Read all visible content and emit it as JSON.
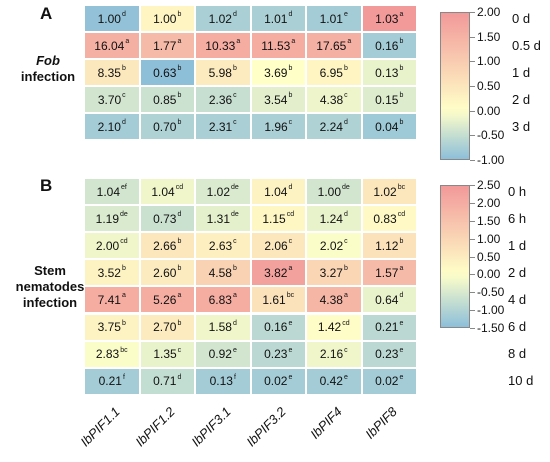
{
  "chart_data": [
    {
      "type": "heatmap",
      "panel_label": "A",
      "title_line1": "Fob",
      "title_line2": "infection",
      "columns": [
        "IbPIF1.1",
        "IbPIF1.2",
        "IbPIF3.1",
        "IbPIF3.2",
        "IbPIF4",
        "IbPIF8"
      ],
      "rows": [
        "0 d",
        "0.5 d",
        "1 d",
        "2 d",
        "3 d"
      ],
      "values": [
        [
          1.0,
          1.0,
          1.02,
          1.01,
          1.01,
          1.03
        ],
        [
          16.04,
          1.77,
          10.33,
          11.53,
          17.65,
          0.16
        ],
        [
          8.35,
          0.63,
          5.98,
          3.69,
          6.95,
          0.13
        ],
        [
          3.7,
          0.85,
          2.36,
          3.54,
          4.38,
          0.15
        ],
        [
          2.1,
          0.7,
          2.31,
          1.96,
          2.24,
          0.04
        ]
      ],
      "display": [
        [
          "1.00",
          "1.00",
          "1.02",
          "1.01",
          "1.01",
          "1.03"
        ],
        [
          "16.04",
          "1.77",
          "10.33",
          "11.53",
          "17.65",
          "0.16"
        ],
        [
          "8.35",
          "0.63",
          "5.98",
          "3.69",
          "6.95",
          "0.13"
        ],
        [
          "3.70",
          "0.85",
          "2.36",
          "3.54",
          "4.38",
          "0.15"
        ],
        [
          "2.10",
          "0.70",
          "2.31",
          "1.96",
          "2.24",
          "0.04"
        ]
      ],
      "letters": [
        [
          "d",
          "b",
          "d",
          "d",
          "e",
          "a"
        ],
        [
          "a",
          "a",
          "a",
          "a",
          "a",
          "b"
        ],
        [
          "b",
          "b",
          "b",
          "b",
          "b",
          "b"
        ],
        [
          "c",
          "b",
          "c",
          "b",
          "c",
          "b"
        ],
        [
          "d",
          "b",
          "c",
          "c",
          "d",
          "b"
        ]
      ],
      "color_matrix": [
        [
          -0.95,
          0.2,
          -0.75,
          -0.75,
          -0.8,
          2.0
        ],
        [
          1.55,
          1.35,
          1.6,
          1.6,
          1.55,
          -0.8
        ],
        [
          0.45,
          -1.0,
          0.4,
          0.0,
          0.2,
          -0.2
        ],
        [
          -0.4,
          -0.45,
          -0.5,
          -0.25,
          -0.15,
          -0.3
        ],
        [
          -0.8,
          -0.7,
          -0.75,
          -0.75,
          -0.7,
          -0.85
        ]
      ],
      "colorbar": {
        "min": -1.0,
        "max": 2.0,
        "ticks": [
          "2.00",
          "1.50",
          "1.00",
          "0.50",
          "0.00",
          "-0.50",
          "-1.00"
        ]
      },
      "colors": {
        "low": "#8dbfd9",
        "mid": "#ffffc8",
        "high": "#f29999"
      }
    },
    {
      "type": "heatmap",
      "panel_label": "B",
      "title_line1": "Stem",
      "title_line2": "nematodes",
      "title_line3": "infection",
      "columns": [
        "IbPIF1.1",
        "IbPIF1.2",
        "IbPIF3.1",
        "IbPIF3.2",
        "IbPIF4",
        "IbPIF8"
      ],
      "rows": [
        "0 h",
        "6 h",
        "1 d",
        "2 d",
        "4 d",
        "6 d",
        "8 d",
        "10 d"
      ],
      "values": [
        [
          1.04,
          1.04,
          1.02,
          1.04,
          1.0,
          1.02
        ],
        [
          1.19,
          0.73,
          1.31,
          1.15,
          1.24,
          0.83
        ],
        [
          2.0,
          2.66,
          2.63,
          2.06,
          2.02,
          1.12
        ],
        [
          3.52,
          2.6,
          4.58,
          3.82,
          3.27,
          1.57
        ],
        [
          7.41,
          5.26,
          6.83,
          1.61,
          4.38,
          0.64
        ],
        [
          3.75,
          2.7,
          1.58,
          0.16,
          1.42,
          0.21
        ],
        [
          2.83,
          1.35,
          0.92,
          0.23,
          2.16,
          0.23
        ],
        [
          0.21,
          0.71,
          0.13,
          0.02,
          0.42,
          0.02
        ]
      ],
      "display": [
        [
          "1.04",
          "1.04",
          "1.02",
          "1.04",
          "1.00",
          "1.02"
        ],
        [
          "1.19",
          "0.73",
          "1.31",
          "1.15",
          "1.24",
          "0.83"
        ],
        [
          "2.00",
          "2.66",
          "2.63",
          "2.06",
          "2.02",
          "1.12"
        ],
        [
          "3.52",
          "2.60",
          "4.58",
          "3.82",
          "3.27",
          "1.57"
        ],
        [
          "7.41",
          "5.26",
          "6.83",
          "1.61",
          "4.38",
          "0.64"
        ],
        [
          "3.75",
          "2.70",
          "1.58",
          "0.16",
          "1.42",
          "0.21"
        ],
        [
          "2.83",
          "1.35",
          "0.92",
          "0.23",
          "2.16",
          "0.23"
        ],
        [
          "0.21",
          "0.71",
          "0.13",
          "0.02",
          "0.42",
          "0.02"
        ]
      ],
      "letters": [
        [
          "ef",
          "cd",
          "de",
          "d",
          "de",
          "bc"
        ],
        [
          "de",
          "d",
          "de",
          "cd",
          "d",
          "cd"
        ],
        [
          "cd",
          "b",
          "c",
          "c",
          "c",
          "b"
        ],
        [
          "b",
          "b",
          "b",
          "a",
          "b",
          "a"
        ],
        [
          "a",
          "a",
          "a",
          "bc",
          "a",
          "d"
        ],
        [
          "b",
          "b",
          "d",
          "e",
          "cd",
          "e"
        ],
        [
          "bc",
          "c",
          "e",
          "e",
          "c",
          "e"
        ],
        [
          "f",
          "d",
          "f",
          "e",
          "e",
          "e"
        ]
      ],
      "color_matrix": [
        [
          -0.6,
          -0.2,
          -0.5,
          0.3,
          -0.6,
          0.6
        ],
        [
          -0.5,
          -0.7,
          -0.35,
          0.2,
          -0.3,
          0.15
        ],
        [
          -0.2,
          0.6,
          0.4,
          0.6,
          -0.05,
          0.7
        ],
        [
          0.3,
          0.5,
          1.1,
          2.3,
          1.0,
          1.7
        ],
        [
          2.0,
          2.0,
          2.0,
          0.7,
          1.8,
          -0.3
        ],
        [
          0.3,
          0.5,
          -0.2,
          -0.9,
          0.05,
          -0.9
        ],
        [
          -0.05,
          -0.3,
          -0.6,
          -0.9,
          -0.2,
          -0.9
        ],
        [
          -1.2,
          -0.8,
          -1.2,
          -1.2,
          -1.2,
          -1.2
        ]
      ],
      "colorbar": {
        "min": -1.5,
        "max": 2.5,
        "ticks": [
          "2.50",
          "2.00",
          "1.50",
          "1.00",
          "0.50",
          "0.00",
          "-0.50",
          "-1.00",
          "-1.50"
        ]
      },
      "colors": {
        "low": "#8dbfd9",
        "mid": "#ffffc8",
        "high": "#f29999"
      }
    }
  ]
}
